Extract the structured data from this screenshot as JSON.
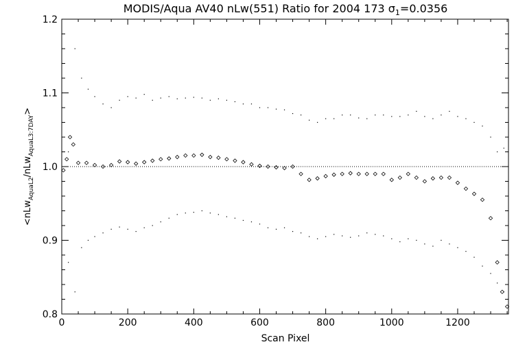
{
  "chart_data": {
    "type": "scatter",
    "title": "MODIS/Aqua AV40 nLw(551) Ratio for 2004 173 σ1=0.0356",
    "title_parts": {
      "prefix": "MODIS/Aqua AV40 nLw(551) Ratio for 2004 173 σ",
      "sub": "1",
      "suffix": "=0.0356"
    },
    "xlabel": "Scan Pixel",
    "ylabel": "<nLwAquaL2/nLwAquaL3:7DAY>",
    "ylabel_parts": [
      {
        "t": "<nLw",
        "sub": false
      },
      {
        "t": "AquaL2",
        "sub": true
      },
      {
        "t": "/nLw",
        "sub": false
      },
      {
        "t": "AquaL3:7DAY",
        "sub": true
      },
      {
        "t": ">",
        "sub": false
      }
    ],
    "xlim": [
      0,
      1354
    ],
    "ylim": [
      0.8,
      1.2
    ],
    "x_ticks": [
      0,
      200,
      400,
      600,
      800,
      1000,
      1200
    ],
    "y_ticks": [
      0.8,
      0.9,
      1.0,
      1.1,
      1.2
    ],
    "x_tick_labels": [
      "0",
      "200",
      "400",
      "600",
      "800",
      "1000",
      "1200"
    ],
    "y_tick_labels": [
      "0.8",
      "0.9",
      "1.0",
      "1.1",
      "1.2"
    ],
    "reference_line": 1.0,
    "series": [
      {
        "role": "mean_ratio",
        "marker": "diamond",
        "x": [
          5,
          15,
          25,
          35,
          50,
          75,
          100,
          125,
          150,
          175,
          200,
          225,
          250,
          275,
          300,
          325,
          350,
          375,
          400,
          425,
          450,
          475,
          500,
          525,
          550,
          575,
          600,
          625,
          650,
          675,
          700,
          725,
          750,
          775,
          800,
          825,
          850,
          875,
          900,
          925,
          950,
          975,
          1000,
          1025,
          1050,
          1075,
          1100,
          1125,
          1150,
          1175,
          1200,
          1225,
          1250,
          1275,
          1300,
          1320,
          1335,
          1350
        ],
        "y": [
          0.995,
          1.01,
          1.04,
          1.03,
          1.005,
          1.005,
          1.002,
          1.0,
          1.002,
          1.007,
          1.006,
          1.004,
          1.006,
          1.008,
          1.01,
          1.011,
          1.013,
          1.015,
          1.015,
          1.016,
          1.013,
          1.012,
          1.01,
          1.008,
          1.006,
          1.003,
          1.001,
          1.0,
          0.999,
          0.998,
          1.0,
          0.99,
          0.982,
          0.984,
          0.987,
          0.989,
          0.99,
          0.991,
          0.99,
          0.99,
          0.99,
          0.99,
          0.982,
          0.985,
          0.99,
          0.985,
          0.98,
          0.984,
          0.985,
          0.985,
          0.978,
          0.97,
          0.963,
          0.955,
          0.93,
          0.87,
          0.83,
          0.81
        ]
      },
      {
        "role": "upper_bound",
        "marker": "dot",
        "x": [
          20,
          40,
          60,
          80,
          100,
          125,
          150,
          175,
          200,
          225,
          250,
          275,
          300,
          325,
          350,
          375,
          400,
          425,
          450,
          475,
          500,
          525,
          550,
          575,
          600,
          625,
          650,
          675,
          700,
          725,
          750,
          775,
          800,
          825,
          850,
          875,
          900,
          925,
          950,
          975,
          1000,
          1025,
          1050,
          1075,
          1100,
          1125,
          1150,
          1175,
          1200,
          1225,
          1250,
          1275,
          1300,
          1320,
          1340
        ],
        "y": [
          1.02,
          1.16,
          1.12,
          1.105,
          1.095,
          1.085,
          1.08,
          1.09,
          1.095,
          1.093,
          1.098,
          1.09,
          1.093,
          1.095,
          1.092,
          1.093,
          1.094,
          1.093,
          1.09,
          1.092,
          1.09,
          1.088,
          1.085,
          1.085,
          1.08,
          1.08,
          1.078,
          1.077,
          1.072,
          1.07,
          1.063,
          1.06,
          1.065,
          1.065,
          1.07,
          1.07,
          1.066,
          1.065,
          1.07,
          1.07,
          1.068,
          1.068,
          1.07,
          1.075,
          1.068,
          1.065,
          1.07,
          1.075,
          1.068,
          1.065,
          1.06,
          1.055,
          1.04,
          1.02,
          1.025
        ]
      },
      {
        "role": "lower_bound",
        "marker": "dot",
        "x": [
          20,
          40,
          60,
          80,
          100,
          125,
          150,
          175,
          200,
          225,
          250,
          275,
          300,
          325,
          350,
          375,
          400,
          425,
          450,
          475,
          500,
          525,
          550,
          575,
          600,
          625,
          650,
          675,
          700,
          725,
          750,
          775,
          800,
          825,
          850,
          875,
          900,
          925,
          950,
          975,
          1000,
          1025,
          1050,
          1075,
          1100,
          1125,
          1150,
          1175,
          1200,
          1225,
          1250,
          1275,
          1300,
          1320,
          1340
        ],
        "y": [
          0.87,
          0.83,
          0.89,
          0.9,
          0.905,
          0.91,
          0.915,
          0.918,
          0.915,
          0.912,
          0.917,
          0.92,
          0.925,
          0.93,
          0.935,
          0.937,
          0.938,
          0.94,
          0.937,
          0.935,
          0.932,
          0.93,
          0.927,
          0.925,
          0.922,
          0.917,
          0.915,
          0.917,
          0.912,
          0.91,
          0.905,
          0.902,
          0.905,
          0.908,
          0.906,
          0.904,
          0.906,
          0.91,
          0.908,
          0.906,
          0.902,
          0.898,
          0.902,
          0.9,
          0.895,
          0.892,
          0.9,
          0.895,
          0.89,
          0.885,
          0.877,
          0.865,
          0.855,
          0.842,
          0.83
        ]
      }
    ]
  }
}
